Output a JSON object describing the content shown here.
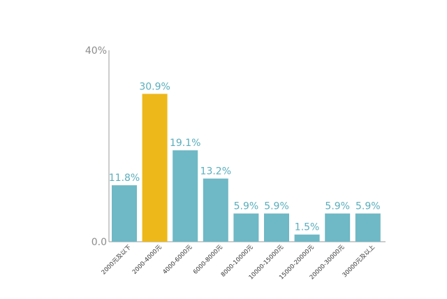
{
  "chart_data": {
    "type": "bar",
    "categories": [
      "2000元及以下",
      "2000-4000元",
      "4000-6000元",
      "6000-8000元",
      "8000-10000元",
      "10000-15000元",
      "15000-20000元",
      "20000-30000元",
      "30000元及以上"
    ],
    "values": [
      11.8,
      30.9,
      19.1,
      13.2,
      5.9,
      5.9,
      1.5,
      5.9,
      5.9
    ],
    "data_labels": [
      "11.8%",
      "30.9%",
      "19.1%",
      "13.2%",
      "5.9%",
      "5.9%",
      "1.5%",
      "5.9%",
      "5.9%"
    ],
    "ylim": [
      0,
      40
    ],
    "y_tick_labels": [
      "0.0",
      "40%"
    ],
    "grid": false,
    "colors": {
      "bar": "#6fb8c5",
      "highlight_bar": "#edb819",
      "highlight_index": 1,
      "data_label": "#5aaebd",
      "axis": "#9a9a9a",
      "tick_label": "#8c8c8c",
      "category_label": "#333333"
    }
  }
}
